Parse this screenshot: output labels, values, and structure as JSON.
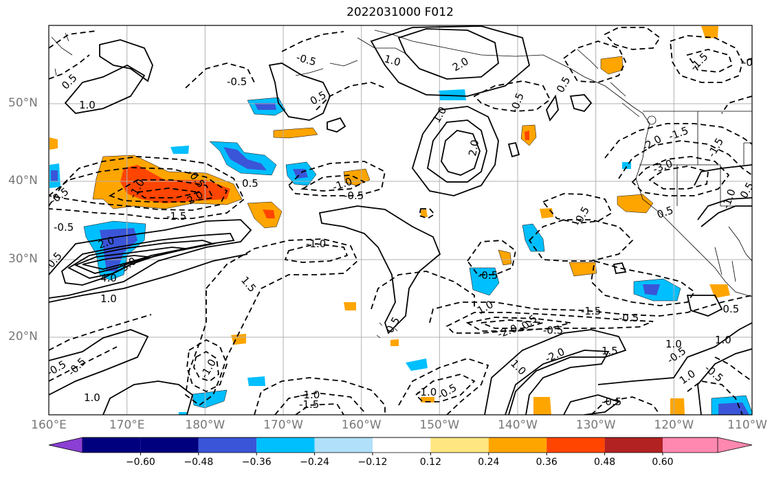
{
  "title": "2022031000 F012",
  "lat_labels": [
    "50°N",
    "40°N",
    "30°N",
    "20°N"
  ],
  "lon_labels": [
    "160°E",
    "170°E",
    "180°W",
    "170°W",
    "160°W",
    "150°W",
    "140°W",
    "130°W",
    "120°W",
    "110°W"
  ],
  "colorbar": {
    "ticks": [
      "−0.60",
      "−0.48",
      "−0.36",
      "−0.24",
      "−0.12",
      "0.12",
      "0.24",
      "0.36",
      "0.48",
      "0.60"
    ],
    "colors": [
      "#8b3fd4",
      "#00007f",
      "#3a55d8",
      "#00bfff",
      "#b0e0fa",
      "#ffffff",
      "#ffe680",
      "#ffa500",
      "#ff4500",
      "#b22222",
      "#ff88b0"
    ]
  },
  "contour_labels": [
    "0.5",
    "-0.5",
    "1.0",
    "-1.0",
    "1.5",
    "-1.5",
    "2.0",
    "-2.0",
    "3.0",
    "-3.0",
    "4.0",
    "-0.5",
    "2.0",
    "-0.5",
    "-0.5",
    "-0.5",
    "-1.0",
    "1.0",
    "-1.5",
    "2.0",
    "-2.0",
    "1.0",
    "-1.0",
    "-0.5",
    "0.5",
    "-0.5",
    "1.5",
    "-0.5",
    "-1.0",
    "-1.5",
    "-2.0",
    "0.5",
    "-0.5",
    "2.0",
    "-0.5",
    "1.0",
    "-0.5",
    "-1.0",
    "-1.5",
    "-1.0",
    "-0.5",
    "-0.5",
    "1.0",
    "-0.5",
    "0.5",
    "0.5",
    "-0.5",
    "0.5",
    "-0.5",
    "-1.5",
    "-2.0",
    "-3.0",
    "-1.5",
    "1.5",
    "-1.0",
    "-0.5",
    "-0.5",
    "1.0",
    "-0.5"
  ]
}
